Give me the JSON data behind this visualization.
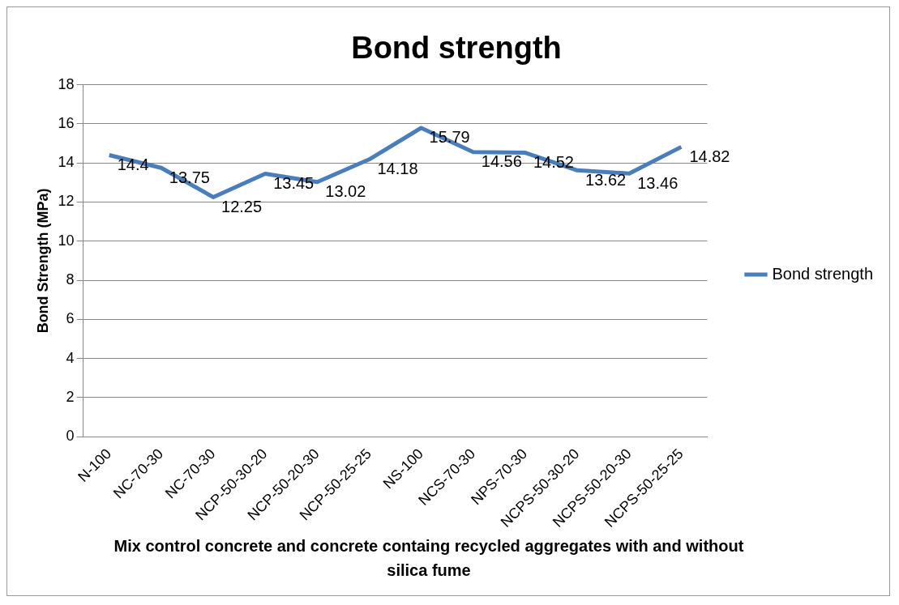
{
  "chart_data": {
    "type": "line",
    "title": "Bond strength",
    "xlabel": "Mix control concrete and concrete containg recycled aggregates with and without silica fume",
    "ylabel": "Bond Strength (MPa)",
    "categories": [
      "N-100",
      "NC-70-30",
      "NC-70-30",
      "NCP-50-30-20",
      "NCP-50-20-30",
      "NCP-50-25-25",
      "NS-100",
      "NCS-70-30",
      "NPS-70-30",
      "NCPS-50-30-20",
      "NCPS-50-20-30",
      "NCPS-50-25-25"
    ],
    "series": [
      {
        "name": "Bond strength",
        "color": "#4a7ebb",
        "values": [
          14.4,
          13.75,
          12.25,
          13.45,
          13.02,
          14.18,
          15.79,
          14.56,
          14.52,
          13.62,
          13.46,
          14.82
        ]
      }
    ],
    "ylim": [
      0,
      18
    ],
    "yticks": [
      0,
      2,
      4,
      6,
      8,
      10,
      12,
      14,
      16,
      18
    ],
    "grid": "y",
    "legend": "right",
    "marker": "none",
    "line_style": "solid",
    "data_labels": true
  }
}
